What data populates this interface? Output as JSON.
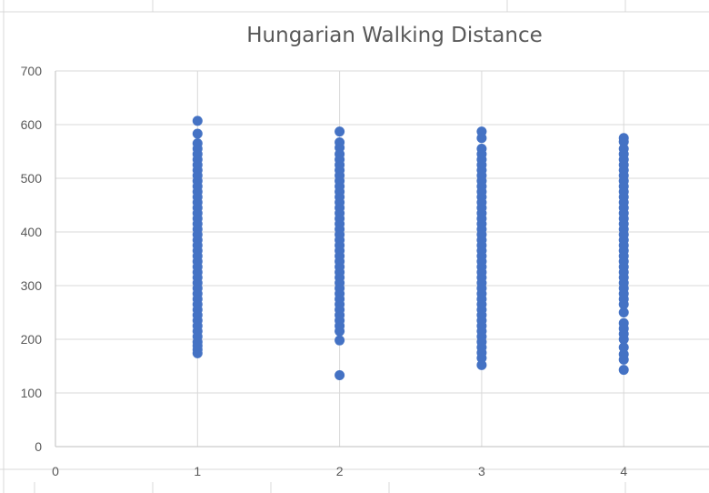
{
  "chart_data": {
    "type": "scatter",
    "title": "Hungarian Walking Distance",
    "xlabel": "",
    "ylabel": "",
    "xlim": [
      0,
      4.6
    ],
    "ylim": [
      0,
      700
    ],
    "x_ticks": [
      0,
      1,
      2,
      3,
      4
    ],
    "y_ticks": [
      0,
      100,
      200,
      300,
      400,
      500,
      600,
      700
    ],
    "grid": true,
    "legend": "none",
    "marker_color": "#4472c4",
    "series": [
      {
        "x": 1,
        "values": [
          607,
          583,
          565,
          555,
          545,
          535,
          525,
          515,
          505,
          495,
          485,
          475,
          465,
          455,
          445,
          435,
          425,
          415,
          405,
          395,
          385,
          375,
          365,
          355,
          345,
          335,
          325,
          315,
          305,
          295,
          285,
          275,
          265,
          255,
          245,
          235,
          225,
          215,
          205,
          195,
          188,
          181,
          174
        ]
      },
      {
        "x": 2,
        "values": [
          587,
          567,
          557,
          545,
          535,
          525,
          515,
          505,
          495,
          485,
          475,
          465,
          455,
          445,
          435,
          425,
          415,
          405,
          395,
          385,
          375,
          365,
          355,
          345,
          335,
          325,
          315,
          305,
          295,
          285,
          275,
          265,
          255,
          245,
          235,
          225,
          215,
          198,
          133
        ]
      },
      {
        "x": 3,
        "values": [
          587,
          575,
          555,
          545,
          535,
          525,
          515,
          505,
          495,
          485,
          475,
          465,
          455,
          445,
          435,
          425,
          415,
          405,
          395,
          385,
          375,
          365,
          355,
          345,
          335,
          325,
          315,
          305,
          295,
          285,
          275,
          265,
          255,
          245,
          235,
          225,
          215,
          205,
          195,
          185,
          175,
          165,
          152
        ]
      },
      {
        "x": 4,
        "values": [
          575,
          568,
          555,
          545,
          535,
          525,
          515,
          505,
          495,
          485,
          475,
          465,
          455,
          445,
          435,
          425,
          415,
          405,
          395,
          385,
          375,
          365,
          355,
          345,
          335,
          325,
          315,
          305,
          295,
          285,
          275,
          265,
          250,
          230,
          220,
          210,
          200,
          185,
          172,
          162,
          143
        ]
      }
    ]
  }
}
